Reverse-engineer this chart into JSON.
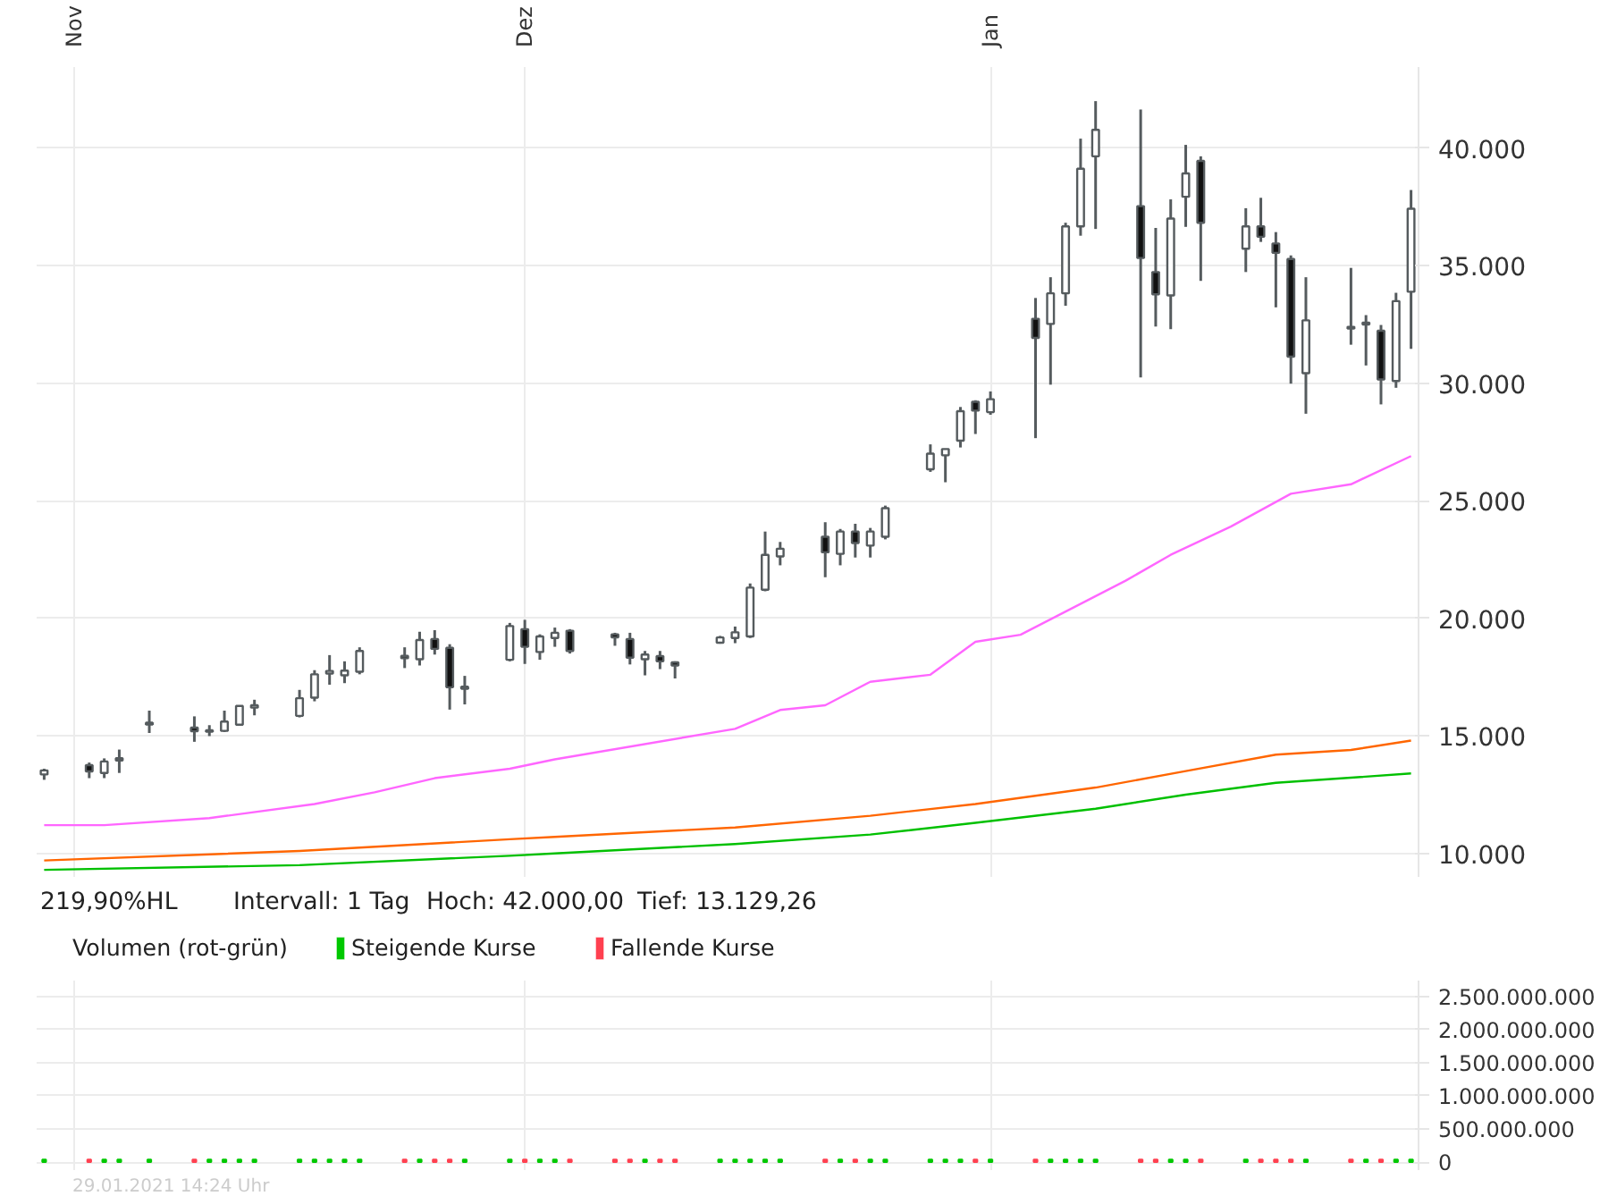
{
  "chart_data": [
    {
      "type": "candlestick",
      "grid": true,
      "x": [
        "2020-10-30",
        "2020-11-02",
        "2020-11-03",
        "2020-11-04",
        "2020-11-06",
        "2020-11-09",
        "2020-11-10",
        "2020-11-11",
        "2020-11-12",
        "2020-11-13",
        "2020-11-16",
        "2020-11-17",
        "2020-11-18",
        "2020-11-19",
        "2020-11-20",
        "2020-11-23",
        "2020-11-24",
        "2020-11-25",
        "2020-11-26",
        "2020-11-27",
        "2020-11-30",
        "2020-12-01",
        "2020-12-02",
        "2020-12-03",
        "2020-12-04",
        "2020-12-07",
        "2020-12-08",
        "2020-12-09",
        "2020-12-10",
        "2020-12-11",
        "2020-12-14",
        "2020-12-15",
        "2020-12-16",
        "2020-12-17",
        "2020-12-18",
        "2020-12-21",
        "2020-12-22",
        "2020-12-23",
        "2020-12-24",
        "2020-12-25",
        "2020-12-28",
        "2020-12-29",
        "2020-12-30",
        "2020-12-31",
        "2021-01-01",
        "2021-01-04",
        "2021-01-05",
        "2021-01-06",
        "2021-01-07",
        "2021-01-08",
        "2021-01-11",
        "2021-01-12",
        "2021-01-13",
        "2021-01-14",
        "2021-01-15",
        "2021-01-18",
        "2021-01-19",
        "2021-01-20",
        "2021-01-21",
        "2021-01-22",
        "2021-01-25",
        "2021-01-26",
        "2021-01-27",
        "2021-01-28",
        "2021-01-29"
      ],
      "ohlc": [
        [
          13358,
          13600,
          13129.26,
          13530
        ],
        [
          13754,
          13864,
          13200,
          13489
        ],
        [
          13422,
          14041,
          13202,
          13908
        ],
        [
          13950,
          14416,
          13422,
          14050
        ],
        [
          15480,
          16072,
          15122,
          15560
        ],
        [
          15350,
          15829,
          14747,
          15200
        ],
        [
          15180,
          15454,
          14990,
          15240
        ],
        [
          15211,
          16072,
          15167,
          15608
        ],
        [
          15476,
          16271,
          15476,
          16271
        ],
        [
          16200,
          16536,
          15873,
          16300
        ],
        [
          15851,
          16955,
          15785,
          16602
        ],
        [
          16624,
          17794,
          16469,
          17618
        ],
        [
          17650,
          18435,
          17176,
          17760
        ],
        [
          17573,
          18170,
          17242,
          17772
        ],
        [
          17728,
          18766,
          17618,
          18611
        ],
        [
          18400,
          18766,
          17883,
          18300
        ],
        [
          18258,
          19428,
          17993,
          19075
        ],
        [
          19119,
          19494,
          18457,
          18700
        ],
        [
          18744,
          18898,
          16116,
          17066
        ],
        [
          17000,
          17551,
          16337,
          17090
        ],
        [
          18236,
          19804,
          18170,
          19671
        ],
        [
          19539,
          19936,
          18059,
          18788
        ],
        [
          18567,
          19318,
          18236,
          19229
        ],
        [
          19163,
          19605,
          18788,
          19384
        ],
        [
          19472,
          19539,
          18501,
          18611
        ],
        [
          19318,
          19384,
          18832,
          19186
        ],
        [
          19119,
          19384,
          18037,
          18324
        ],
        [
          18258,
          18611,
          17573,
          18457
        ],
        [
          18390,
          18611,
          17838,
          18170
        ],
        [
          18125,
          18170,
          17441,
          17993
        ],
        [
          18965,
          19252,
          18920,
          19185
        ],
        [
          19163,
          19649,
          18942,
          19406
        ],
        [
          19229,
          21482,
          19163,
          21305
        ],
        [
          21217,
          23690,
          21150,
          22696
        ],
        [
          22630,
          23248,
          22254,
          22961
        ],
        [
          23469,
          24087,
          21747,
          22806
        ],
        [
          22740,
          23800,
          22254,
          23690
        ],
        [
          23690,
          24021,
          22586,
          23204
        ],
        [
          23093,
          23844,
          22586,
          23690
        ],
        [
          23469,
          24794,
          23358,
          24683
        ],
        [
          26339,
          27399,
          26229,
          27002
        ],
        [
          26935,
          27200,
          25787,
          27200
        ],
        [
          27554,
          28989,
          27267,
          28812
        ],
        [
          29210,
          29276,
          27840,
          28834
        ],
        [
          28768,
          29651,
          28658,
          29320
        ],
        [
          32742,
          33626,
          27664,
          31926
        ],
        [
          32522,
          34509,
          29938,
          33824
        ],
        [
          33824,
          36827,
          33294,
          36673
        ],
        [
          36673,
          40404,
          36275,
          39124
        ],
        [
          39653,
          42000,
          36562,
          40780
        ],
        [
          37534,
          41641,
          30247,
          35326
        ],
        [
          34730,
          36606,
          32411,
          33780
        ],
        [
          33736,
          37821,
          32300,
          37004
        ],
        [
          37931,
          40139,
          36651,
          38925
        ],
        [
          39455,
          39653,
          34354,
          36827
        ],
        [
          35723,
          37446,
          34730,
          36673
        ],
        [
          36673,
          37888,
          36011,
          36231
        ],
        [
          35944,
          36429,
          33228,
          35547
        ],
        [
          35282,
          35437,
          29982,
          31131
        ],
        [
          30424,
          34509,
          28702,
          32676
        ],
        [
          32400,
          34906,
          31638,
          32330
        ],
        [
          32500,
          32897,
          30755,
          32580
        ],
        [
          32235,
          32478,
          29099,
          30159
        ],
        [
          30093,
          33847,
          29806,
          33494
        ],
        [
          33891,
          38219,
          31462,
          37424
        ]
      ],
      "series": [
        {
          "type": "line",
          "color": "#ff66ff",
          "x": [
            "2020-10-30",
            "2020-11-03",
            "2020-11-10",
            "2020-11-17",
            "2020-11-21",
            "2020-11-25",
            "2020-11-30",
            "2020-12-03",
            "2020-12-15",
            "2020-12-18",
            "2020-12-21",
            "2020-12-24",
            "2020-12-28",
            "2020-12-31",
            "2021-01-03",
            "2021-01-10",
            "2021-01-13",
            "2021-01-17",
            "2021-01-21",
            "2021-01-25",
            "2021-01-29"
          ],
          "values": [
            11200,
            11200,
            11500,
            12100,
            12600,
            13200,
            13600,
            14000,
            15300,
            16100,
            16300,
            17300,
            17600,
            19000,
            19300,
            21600,
            22700,
            23900,
            25300,
            25700,
            26900
          ]
        },
        {
          "type": "line",
          "color": "#ff6600",
          "x": [
            "2020-10-30",
            "2020-11-16",
            "2020-11-30",
            "2020-12-03",
            "2020-12-15",
            "2020-12-24",
            "2020-12-31",
            "2021-01-08",
            "2021-01-14",
            "2021-01-20",
            "2021-01-25",
            "2021-01-29"
          ],
          "values": [
            9700,
            10100,
            10600,
            10700,
            11100,
            11600,
            12100,
            12800,
            13500,
            14200,
            14400,
            14800
          ]
        },
        {
          "type": "line",
          "color": "#00c000",
          "x": [
            "2020-10-30",
            "2020-11-16",
            "2020-11-30",
            "2020-12-03",
            "2020-12-15",
            "2020-12-24",
            "2020-12-31",
            "2021-01-08",
            "2021-01-14",
            "2021-01-20",
            "2021-01-29"
          ],
          "values": [
            9300,
            9500,
            9900,
            10000,
            10400,
            10800,
            11300,
            11900,
            12500,
            13000,
            13400
          ]
        }
      ],
      "xlim": [
        "2020-10-29T12:00",
        "2021-01-29T12:00"
      ],
      "xticks": [
        {
          "value": "2020-11-01",
          "label": "Nov"
        },
        {
          "value": "2020-12-01",
          "label": "Dez"
        },
        {
          "value": "2021-01-01",
          "label": "Jan"
        }
      ],
      "ylim": [
        9000,
        43450
      ],
      "yticks": [
        {
          "value": 10000,
          "label": "10.000"
        },
        {
          "value": 15000,
          "label": "15.000"
        },
        {
          "value": 20000,
          "label": "20.000"
        },
        {
          "value": 25000,
          "label": "25.000"
        },
        {
          "value": 30000,
          "label": "30.000"
        },
        {
          "value": 35000,
          "label": "35.000"
        },
        {
          "value": 40000,
          "label": "40.000"
        }
      ],
      "annotations": [
        "219,90%HL",
        "Intervall: 1 Tag",
        "Hoch: 42.000,00",
        "Tief: 13.129,26"
      ]
    },
    {
      "type": "bar",
      "grid": true,
      "legend": "top left",
      "legend_title": "Volumen (rot-grün)",
      "tick_labels": "y",
      "x": [
        "2020-10-30",
        "2020-11-02",
        "2020-11-03",
        "2020-11-04",
        "2020-11-06",
        "2020-11-09",
        "2020-11-10",
        "2020-11-11",
        "2020-11-12",
        "2020-11-13",
        "2020-11-16",
        "2020-11-17",
        "2020-11-18",
        "2020-11-19",
        "2020-11-20",
        "2020-11-23",
        "2020-11-24",
        "2020-11-25",
        "2020-11-26",
        "2020-11-27",
        "2020-11-30",
        "2020-12-01",
        "2020-12-02",
        "2020-12-03",
        "2020-12-04",
        "2020-12-07",
        "2020-12-08",
        "2020-12-09",
        "2020-12-10",
        "2020-12-11",
        "2020-12-14",
        "2020-12-15",
        "2020-12-16",
        "2020-12-17",
        "2020-12-18",
        "2020-12-21",
        "2020-12-22",
        "2020-12-23",
        "2020-12-24",
        "2020-12-25",
        "2020-12-28",
        "2020-12-29",
        "2020-12-30",
        "2020-12-31",
        "2021-01-01",
        "2021-01-04",
        "2021-01-05",
        "2021-01-06",
        "2021-01-07",
        "2021-01-08",
        "2021-01-11",
        "2021-01-12",
        "2021-01-13",
        "2021-01-14",
        "2021-01-15",
        "2021-01-18",
        "2021-01-19",
        "2021-01-20",
        "2021-01-21",
        "2021-01-22",
        "2021-01-25",
        "2021-01-26",
        "2021-01-27",
        "2021-01-28",
        "2021-01-29"
      ],
      "series": [
        {
          "name": "Steigende Kurse",
          "color": "#00c800",
          "values": [
            40000000,
            null,
            40000000,
            40000000,
            40000000,
            null,
            40000000,
            40000000,
            40000000,
            40000000,
            40000000,
            40000000,
            40000000,
            40000000,
            40000000,
            null,
            40000000,
            null,
            null,
            40000000,
            40000000,
            null,
            40000000,
            40000000,
            null,
            null,
            null,
            40000000,
            null,
            null,
            40000000,
            40000000,
            40000000,
            40000000,
            40000000,
            null,
            40000000,
            null,
            40000000,
            40000000,
            40000000,
            40000000,
            40000000,
            null,
            40000000,
            null,
            40000000,
            40000000,
            40000000,
            40000000,
            null,
            null,
            40000000,
            40000000,
            null,
            40000000,
            null,
            null,
            null,
            40000000,
            null,
            40000000,
            null,
            40000000,
            40000000
          ]
        },
        {
          "name": "Fallende Kurse",
          "color": "#ff4050",
          "values": [
            null,
            40000000,
            null,
            null,
            null,
            40000000,
            null,
            null,
            null,
            null,
            null,
            null,
            null,
            null,
            null,
            40000000,
            null,
            40000000,
            40000000,
            null,
            null,
            40000000,
            null,
            null,
            40000000,
            40000000,
            40000000,
            null,
            40000000,
            40000000,
            null,
            null,
            null,
            null,
            null,
            40000000,
            null,
            40000000,
            null,
            null,
            null,
            null,
            null,
            40000000,
            null,
            40000000,
            null,
            null,
            null,
            null,
            40000000,
            40000000,
            null,
            null,
            40000000,
            null,
            40000000,
            40000000,
            40000000,
            null,
            40000000,
            null,
            40000000,
            null,
            null
          ]
        }
      ],
      "xlim": [
        "2020-10-29T12:00",
        "2021-01-29T12:00"
      ],
      "xticks": [
        {
          "value": "2020-11-01",
          "label": null
        },
        {
          "value": "2020-12-01",
          "label": null
        },
        {
          "value": "2021-01-01",
          "label": null
        }
      ],
      "ylim": [
        -120000000,
        2740000000
      ],
      "yticks": [
        0,
        {
          "value": 500000000,
          "label": "500.000.000"
        },
        {
          "value": 1000000000,
          "label": "1.000.000.000"
        },
        {
          "value": 1500000000,
          "label": "1.500.000.000"
        },
        {
          "value": 2000000000,
          "label": "2.000.000.000"
        },
        {
          "value": 2500000000,
          "label": "2.500.000.000"
        }
      ],
      "annotations": [
        "29.01.2021 14:24 Uhr"
      ]
    }
  ]
}
